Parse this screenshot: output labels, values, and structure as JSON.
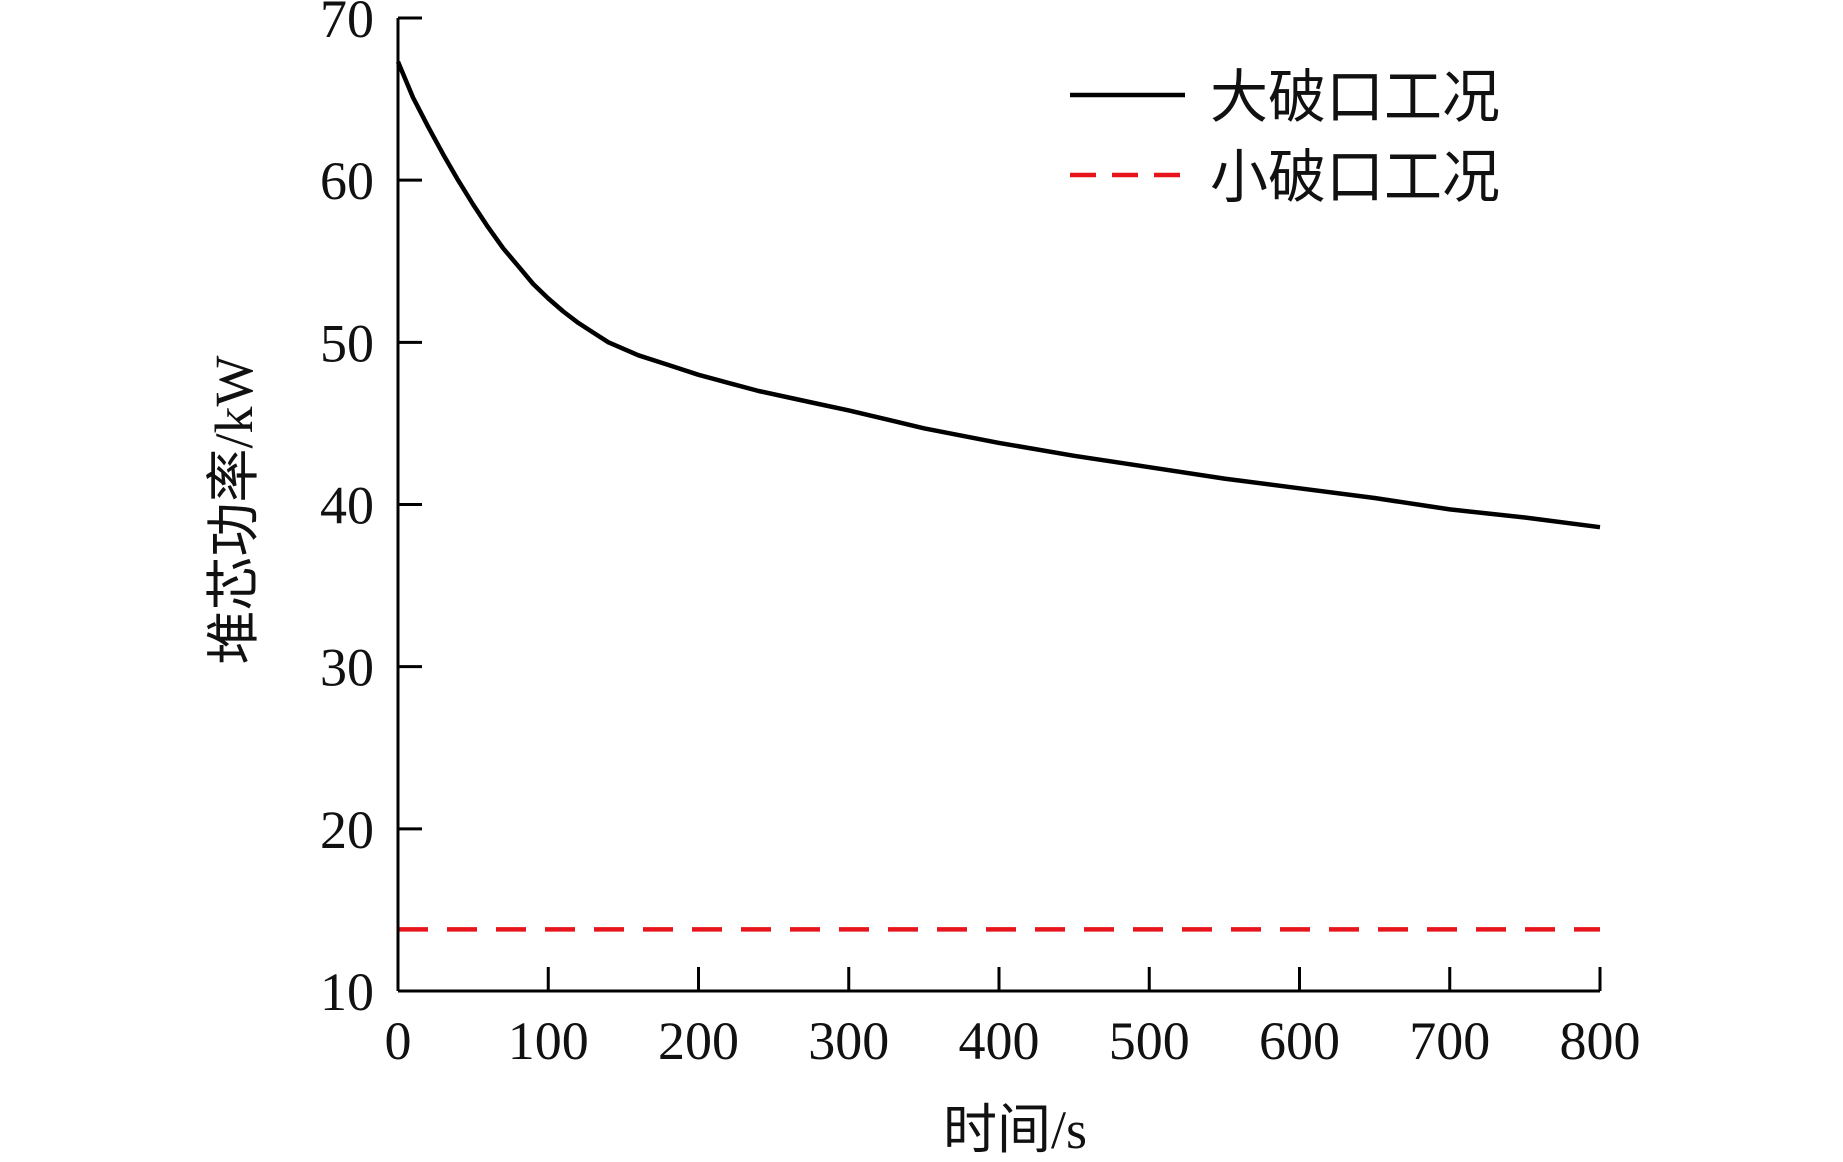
{
  "chart_data": {
    "type": "line",
    "title": "",
    "xlabel": "时间/s",
    "ylabel": "堆芯功率/kW",
    "xlim": [
      0,
      800
    ],
    "ylim": [
      10,
      70
    ],
    "xticks": [
      "0",
      "100",
      "200",
      "300",
      "400",
      "500",
      "600",
      "700",
      "800"
    ],
    "yticks": [
      "10",
      "20",
      "30",
      "40",
      "50",
      "60",
      "70"
    ],
    "grid": false,
    "legend_position": "top-right",
    "series": [
      {
        "name": "大破口工况",
        "color": "#000000",
        "style": "solid",
        "x": [
          0,
          10,
          20,
          30,
          40,
          50,
          60,
          70,
          80,
          90,
          100,
          110,
          120,
          130,
          140,
          150,
          160,
          180,
          200,
          220,
          240,
          260,
          280,
          300,
          350,
          400,
          450,
          500,
          550,
          600,
          650,
          700,
          750,
          800
        ],
        "y": [
          67.3,
          65.1,
          63.3,
          61.6,
          60.0,
          58.5,
          57.1,
          55.8,
          54.7,
          53.6,
          52.7,
          51.9,
          51.2,
          50.6,
          50.0,
          49.6,
          49.2,
          48.6,
          48.0,
          47.5,
          47.0,
          46.6,
          46.2,
          45.8,
          44.7,
          43.8,
          43.0,
          42.3,
          41.6,
          41.0,
          40.4,
          39.7,
          39.2,
          38.6
        ]
      },
      {
        "name": "小破口工况",
        "color": "#e8141b",
        "style": "dashed",
        "x": [
          0,
          800
        ],
        "y": [
          13.8,
          13.8
        ]
      }
    ]
  }
}
